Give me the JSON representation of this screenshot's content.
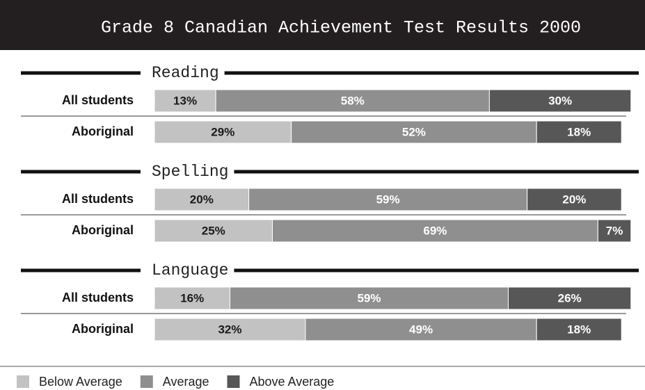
{
  "chart_data": {
    "type": "bar",
    "orientation": "horizontal",
    "stacked": true,
    "title": "Grade 8 Canadian Achievement Test Results 2000",
    "groups": [
      "Reading",
      "Spelling",
      "Language"
    ],
    "categories": [
      "All students",
      "Aboriginal",
      "All students",
      "Aboriginal",
      "All students",
      "Aboriginal"
    ],
    "xlim": [
      0,
      100
    ],
    "series": [
      {
        "name": "Below Average",
        "color": "#c2c2c2",
        "label_color": "#1a1a1a",
        "values": [
          13,
          29,
          20,
          25,
          16,
          32
        ],
        "value_labels": [
          "13%",
          "29%",
          "20%",
          "25%",
          "16%",
          "32%"
        ]
      },
      {
        "name": "Average",
        "color": "#8f8f8f",
        "label_color": "#ffffff",
        "values": [
          58,
          52,
          59,
          69,
          59,
          49
        ],
        "value_labels": [
          "58%",
          "52%",
          "59%",
          "69%",
          "59%",
          "49%"
        ]
      },
      {
        "name": "Above Average",
        "color": "#575757",
        "label_color": "#ffffff",
        "values": [
          30,
          18,
          20,
          7,
          26,
          18
        ],
        "value_labels": [
          "30%",
          "18%",
          "20%",
          "7%",
          "26%",
          "18%"
        ]
      }
    ]
  }
}
